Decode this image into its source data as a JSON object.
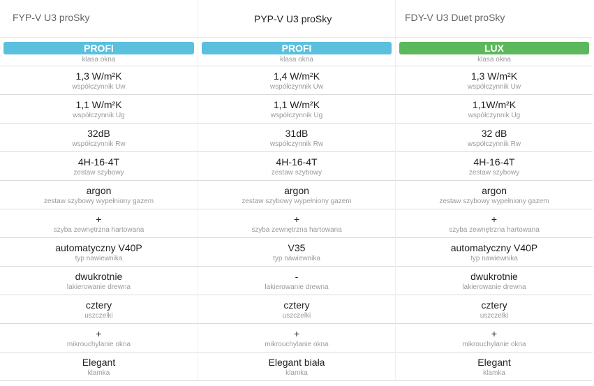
{
  "colors": {
    "profi": "#5bc0de",
    "lux": "#5cb85c"
  },
  "columns": [
    {
      "title": "FYP-V U3 proSky",
      "badge": "PROFI",
      "badge_color": "#5bc0de",
      "rows": [
        {
          "value": "",
          "label": "klasa okna"
        },
        {
          "value": "1,3 W/m²K",
          "label": "współczynnik Uw"
        },
        {
          "value": "1,1 W/m²K",
          "label": "współczynnik Ug"
        },
        {
          "value": "32dB",
          "label": "współczynnik Rw"
        },
        {
          "value": "4H-16-4T",
          "label": "zestaw szybowy"
        },
        {
          "value": "argon",
          "label": "zestaw szybowy wypełniony gazem"
        },
        {
          "value": "+",
          "label": "szyba zewnętrzna hartowana"
        },
        {
          "value": "automatyczny V40P",
          "label": "typ nawiewnika"
        },
        {
          "value": "dwukrotnie",
          "label": "lakierowanie drewna"
        },
        {
          "value": "cztery",
          "label": "uszczelki"
        },
        {
          "value": "+",
          "label": "mikrouchylanie okna"
        },
        {
          "value": "Elegant",
          "label": "klamka"
        }
      ]
    },
    {
      "title": "PYP-V U3 proSky",
      "badge": "PROFI",
      "badge_color": "#5bc0de",
      "rows": [
        {
          "value": "",
          "label": "klasa okna"
        },
        {
          "value": "1,4 W/m²K",
          "label": "współczynnik Uw"
        },
        {
          "value": "1,1 W/m²K",
          "label": "współczynnik Ug"
        },
        {
          "value": "31dB",
          "label": "współczynnik Rw"
        },
        {
          "value": "4H-16-4T",
          "label": "zestaw szybowy"
        },
        {
          "value": "argon",
          "label": "zestaw szybowy wypełniony gazem"
        },
        {
          "value": "+",
          "label": "szyba zewnętrzna hartowana"
        },
        {
          "value": "V35",
          "label": "typ nawiewnika"
        },
        {
          "value": "-",
          "label": "lakierowanie drewna"
        },
        {
          "value": "cztery",
          "label": "uszczelki"
        },
        {
          "value": "+",
          "label": "mikrouchylanie okna"
        },
        {
          "value": "Elegant biała",
          "label": "klamka"
        }
      ]
    },
    {
      "title": "FDY-V U3 Duet proSky",
      "badge": "LUX",
      "badge_color": "#5cb85c",
      "rows": [
        {
          "value": "",
          "label": "klasa okna"
        },
        {
          "value": "1,3 W/m²K",
          "label": "współczynnik Uw"
        },
        {
          "value": "1,1W/m²K",
          "label": "współczynnik Ug"
        },
        {
          "value": "32 dB",
          "label": "współczynnik Rw"
        },
        {
          "value": "4H-16-4T",
          "label": "zestaw szybowy"
        },
        {
          "value": "argon",
          "label": "zestaw szybowy wypełniony gazem"
        },
        {
          "value": "+",
          "label": "szyba zewnętrzna hartowana"
        },
        {
          "value": "automatyczny V40P",
          "label": "typ nawiewnika"
        },
        {
          "value": "dwukrotnie",
          "label": "lakierowanie drewna"
        },
        {
          "value": "cztery",
          "label": "uszczelki"
        },
        {
          "value": "+",
          "label": "mikrouchylanie okna"
        },
        {
          "value": "Elegant",
          "label": "klamka"
        }
      ]
    }
  ]
}
